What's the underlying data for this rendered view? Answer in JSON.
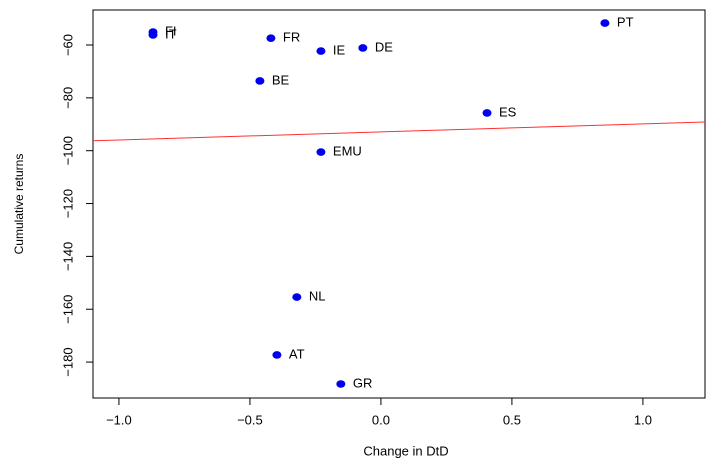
{
  "chart_data": {
    "type": "scatter",
    "x_label": "Change in DtD",
    "y_label": "Cumulative returns",
    "labels": [
      "FI",
      "IT",
      "FR",
      "IE",
      "DE",
      "PT",
      "BE",
      "ES",
      "EMU",
      "NL",
      "AT",
      "GR"
    ],
    "x": [
      -0.87,
      -0.87,
      -0.42,
      -0.229,
      -0.069,
      0.855,
      -0.462,
      0.405,
      -0.229,
      -0.321,
      -0.397,
      -0.153
    ],
    "values": [
      -55.1,
      -56.2,
      -57.4,
      -62.3,
      -61.1,
      -51.7,
      -73.6,
      -85.7,
      -100.5,
      -155.4,
      -177.3,
      -188.3
    ],
    "color": "#0000ee",
    "fit": {
      "intercept": -92.9,
      "slope": 3.04,
      "color": "#ff3030"
    },
    "xlim": [
      -1.099,
      1.237
    ],
    "ylim": [
      -193.6,
      -46.75
    ],
    "xticks": [
      {
        "value": -1.0,
        "label": "−1.0"
      },
      {
        "value": -0.5,
        "label": "−0.5"
      },
      {
        "value": 0,
        "label": "0.0"
      },
      {
        "value": 0.5,
        "label": "0.5"
      },
      {
        "value": 1.0,
        "label": "1.0"
      }
    ],
    "yticks": [
      {
        "value": -180,
        "label": "−180"
      },
      {
        "value": -160,
        "label": "−160"
      },
      {
        "value": -140,
        "label": "−140"
      },
      {
        "value": -120,
        "label": "−120"
      },
      {
        "value": -100,
        "label": "−100"
      },
      {
        "value": -80,
        "label": "−80"
      },
      {
        "value": -60,
        "label": "−60"
      }
    ]
  }
}
